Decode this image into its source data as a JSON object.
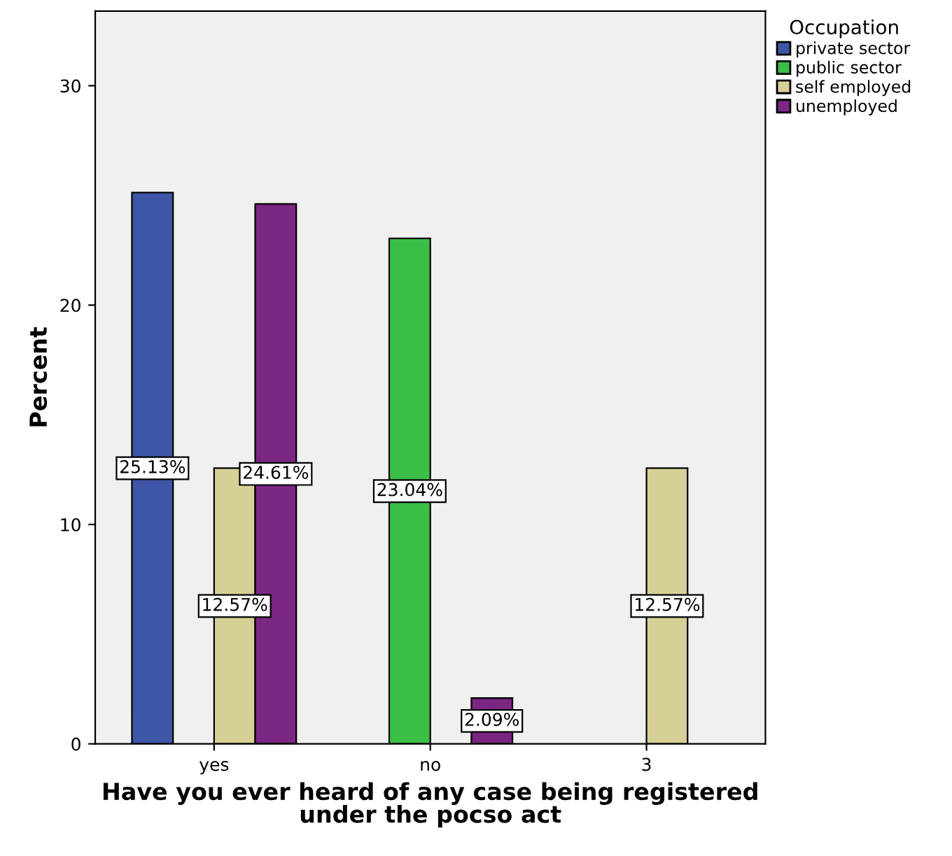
{
  "chart_data": {
    "type": "bar",
    "xlabel": "Have you ever heard of any case being registered\nunder the pocso act",
    "ylabel": "Percent",
    "legend_title": "Occupation",
    "legend": "right",
    "categories": [
      "yes",
      "no",
      "3"
    ],
    "series": [
      {
        "name": "private sector",
        "color": "#3e56a8",
        "values": [
          25.13,
          null,
          null
        ],
        "value_labels": [
          "25.13%",
          null,
          null
        ]
      },
      {
        "name": "public sector",
        "color": "#3cbf46",
        "values": [
          null,
          23.04,
          null
        ],
        "value_labels": [
          null,
          "23.04%",
          null
        ]
      },
      {
        "name": "self employed",
        "color": "#d6d097",
        "values": [
          12.57,
          null,
          12.57
        ],
        "value_labels": [
          "12.57%",
          null,
          "12.57%"
        ]
      },
      {
        "name": "unemployed",
        "color": "#7a2682",
        "values": [
          24.61,
          2.09,
          null
        ],
        "value_labels": [
          "24.61%",
          "2.09%",
          null
        ]
      }
    ],
    "ylim": [
      0,
      33.4
    ],
    "yticks": [
      0,
      10,
      20,
      30
    ],
    "grid": false
  }
}
